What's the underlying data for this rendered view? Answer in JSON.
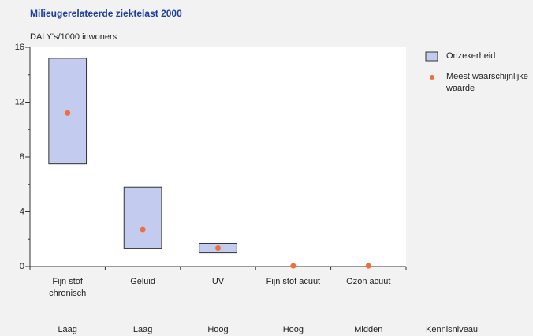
{
  "chart_data": {
    "type": "range",
    "title": "Milieugerelateerde ziektelast 2000",
    "y_label": "DALY's/1000 inwoners",
    "categories": [
      "Fijn stof chronisch",
      "Geluid",
      "UV",
      "Fijn stof acuut",
      "Ozon acuut"
    ],
    "series": [
      {
        "name": "Onzekerheid",
        "color": "#c3cbef",
        "low": [
          7.5,
          1.3,
          1.0,
          null,
          null
        ],
        "high": [
          15.2,
          5.8,
          1.7,
          null,
          null
        ]
      },
      {
        "name": "Meest waarschijnlijke waarde",
        "color": "#f26d3d",
        "values": [
          11.2,
          2.7,
          1.35,
          0.05,
          0.05
        ]
      }
    ],
    "kennisniveau_label": "Kennisniveau",
    "kennisniveau": [
      "Laag",
      "Laag",
      "Hoog",
      "Hoog",
      "Midden"
    ],
    "ylim": [
      0,
      16
    ],
    "yticks": [
      0,
      4,
      8,
      12,
      16
    ],
    "yminorticks": [
      2,
      6,
      10,
      14
    ],
    "legend": "right"
  }
}
